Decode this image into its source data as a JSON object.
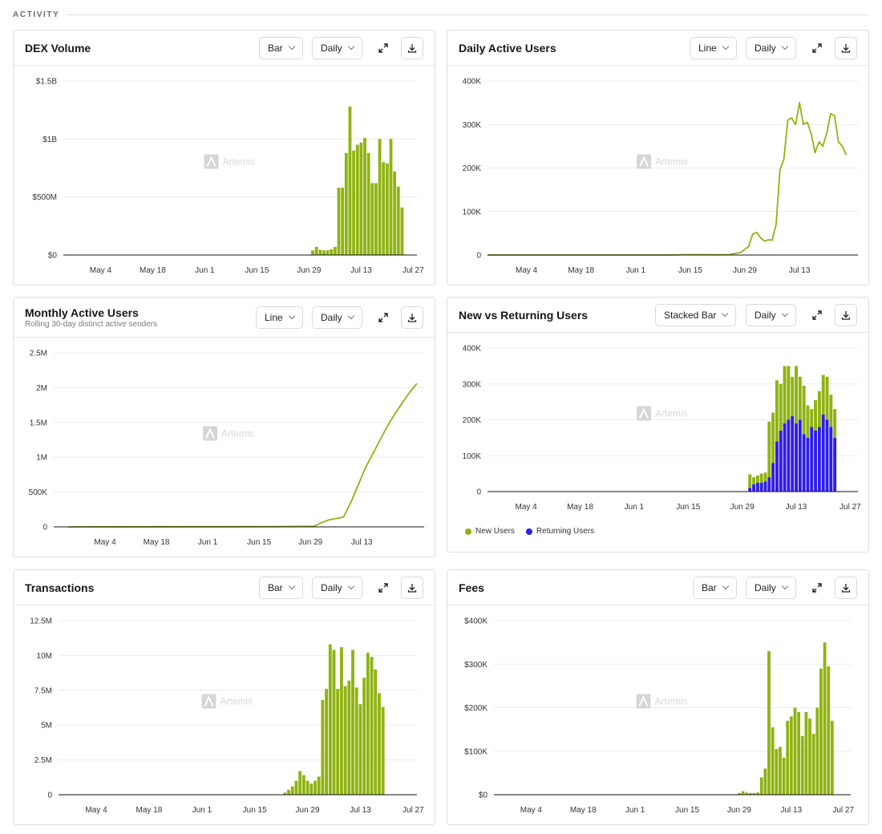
{
  "section": {
    "title": "ACTIVITY"
  },
  "colors": {
    "green": "#8fb312",
    "blue": "#2f1ee8",
    "grid": "#ececec",
    "axis": "#111111",
    "watermark": "#d6d6d6"
  },
  "watermark": "Artemis",
  "xticks": [
    "May 4",
    "May 18",
    "Jun 1",
    "Jun 15",
    "Jun 29",
    "Jul 13",
    "Jul 27"
  ],
  "cards": {
    "dex": {
      "title": "DEX Volume",
      "chart_type_label": "Bar",
      "interval_label": "Daily",
      "expand_icon": "expand-icon",
      "download_icon": "download-icon"
    },
    "dau": {
      "title": "Daily Active Users",
      "chart_type_label": "Line",
      "interval_label": "Daily"
    },
    "mau": {
      "title": "Monthly Active Users",
      "subtitle": "Rolling 30-day distinct active senders",
      "chart_type_label": "Line",
      "interval_label": "Daily"
    },
    "nvr": {
      "title": "New vs Returning Users",
      "chart_type_label": "Stacked Bar",
      "interval_label": "Daily",
      "legend": [
        "New Users",
        "Returning Users"
      ]
    },
    "tx": {
      "title": "Transactions",
      "chart_type_label": "Bar",
      "interval_label": "Daily"
    },
    "fees": {
      "title": "Fees",
      "chart_type_label": "Bar",
      "interval_label": "Daily"
    }
  },
  "chart_data": [
    {
      "id": "dex",
      "type": "bar",
      "title": "DEX Volume",
      "y_ticks": [
        "$0",
        "$500M",
        "$1B",
        "$1.5B"
      ],
      "ylim": [
        0,
        1500000000
      ],
      "x_ticks": [
        "May 4",
        "May 18",
        "Jun 1",
        "Jun 15",
        "Jun 29",
        "Jul 13",
        "Jul 27"
      ],
      "start": "Apr 24",
      "end": "Jul 28",
      "series": [
        {
          "color_key": "green",
          "values_from": "Jun 30",
          "values": [
            40000000.0,
            70000000.0,
            45000000.0,
            40000000.0,
            40000000.0,
            50000000.0,
            70000000.0,
            580000000.0,
            580000000.0,
            880000000.0,
            1280000000.0,
            900000000.0,
            950000000.0,
            970000000.0,
            1010000000.0,
            880000000.0,
            620000000.0,
            620000000.0,
            1000000000.0,
            800000000.0,
            790000000.0,
            1000000000.0,
            720000000.0,
            590000000.0,
            410000000.0
          ]
        }
      ]
    },
    {
      "id": "dau",
      "type": "line",
      "title": "Daily Active Users",
      "y_ticks": [
        "0",
        "100K",
        "200K",
        "300K",
        "400K"
      ],
      "ylim": [
        0,
        400000
      ],
      "x_ticks": [
        "May 4",
        "May 18",
        "Jun 1",
        "Jun 15",
        "Jun 29",
        "Jul 13"
      ],
      "start": "Apr 24",
      "end": "Jul 28",
      "series": [
        {
          "color_key": "green",
          "points": [
            [
              "Apr 24",
              0
            ],
            [
              "Jun 10",
              0
            ],
            [
              "Jun 14",
              1000
            ],
            [
              "Jun 21",
              500
            ],
            [
              "Jun 25",
              1000
            ],
            [
              "Jun 28",
              6000
            ],
            [
              "Jun 30",
              20000
            ],
            [
              "Jul 1",
              48000
            ],
            [
              "Jul 2",
              52000
            ],
            [
              "Jul 3",
              40000
            ],
            [
              "Jul 4",
              32000
            ],
            [
              "Jul 5",
              35000
            ],
            [
              "Jul 6",
              34000
            ],
            [
              "Jul 7",
              70000
            ],
            [
              "Jul 8",
              195000
            ],
            [
              "Jul 9",
              220000
            ],
            [
              "Jul 10",
              310000
            ],
            [
              "Jul 11",
              315000
            ],
            [
              "Jul 12",
              300000
            ],
            [
              "Jul 13",
              350000
            ],
            [
              "Jul 14",
              300000
            ],
            [
              "Jul 15",
              305000
            ],
            [
              "Jul 16",
              280000
            ],
            [
              "Jul 17",
              235000
            ],
            [
              "Jul 18",
              260000
            ],
            [
              "Jul 19",
              250000
            ],
            [
              "Jul 20",
              280000
            ],
            [
              "Jul 21",
              325000
            ],
            [
              "Jul 22",
              320000
            ],
            [
              "Jul 23",
              260000
            ],
            [
              "Jul 24",
              250000
            ],
            [
              "Jul 25",
              230000
            ]
          ]
        }
      ]
    },
    {
      "id": "mau",
      "type": "line",
      "title": "Monthly Active Users",
      "y_ticks": [
        "0",
        "500K",
        "1M",
        "1.5M",
        "2M",
        "2.5M"
      ],
      "ylim": [
        0,
        2500000
      ],
      "x_ticks": [
        "May 4",
        "May 18",
        "Jun 1",
        "Jun 15",
        "Jun 29",
        "Jul 13"
      ],
      "start": "Apr 20",
      "end": "Jul 30",
      "series": [
        {
          "color_key": "green",
          "points": [
            [
              "Apr 24",
              0
            ],
            [
              "Jun 20",
              3000
            ],
            [
              "Jun 30",
              10000
            ],
            [
              "Jul 2",
              60000
            ],
            [
              "Jul 4",
              100000
            ],
            [
              "Jul 6",
              120000
            ],
            [
              "Jul 8",
              140000
            ],
            [
              "Jul 10",
              350000
            ],
            [
              "Jul 12",
              600000
            ],
            [
              "Jul 14",
              850000
            ],
            [
              "Jul 16",
              1050000
            ],
            [
              "Jul 18",
              1250000
            ],
            [
              "Jul 20",
              1450000
            ],
            [
              "Jul 22",
              1620000
            ],
            [
              "Jul 24",
              1780000
            ],
            [
              "Jul 26",
              1930000
            ],
            [
              "Jul 28",
              2060000
            ]
          ]
        }
      ]
    },
    {
      "id": "nvr",
      "type": "bar",
      "stacked": true,
      "title": "New vs Returning Users",
      "y_ticks": [
        "0",
        "100K",
        "200K",
        "300K",
        "400K"
      ],
      "ylim": [
        0,
        400000
      ],
      "x_ticks": [
        "May 4",
        "May 18",
        "Jun 1",
        "Jun 15",
        "Jun 29",
        "Jul 13",
        "Jul 27"
      ],
      "start": "Apr 24",
      "end": "Jul 29",
      "series": [
        {
          "name": "Returning Users",
          "color_key": "blue",
          "values_from": "Jul 1",
          "values": [
            10000,
            20000,
            25000,
            25000,
            28000,
            40000,
            80000,
            140000,
            170000,
            190000,
            200000,
            210000,
            190000,
            200000,
            160000,
            150000,
            180000,
            170000,
            180000,
            215000,
            200000,
            180000,
            150000
          ]
        },
        {
          "name": "New Users",
          "color_key": "green",
          "values_from": "Jul 1",
          "values": [
            38000,
            20000,
            20000,
            25000,
            25000,
            155000,
            140000,
            170000,
            130000,
            160000,
            150000,
            110000,
            160000,
            120000,
            135000,
            90000,
            50000,
            85000,
            100000,
            110000,
            120000,
            90000,
            80000
          ]
        }
      ]
    },
    {
      "id": "tx",
      "type": "bar",
      "title": "Transactions",
      "y_ticks": [
        "0",
        "2.5M",
        "5M",
        "7.5M",
        "10M",
        "12.5M"
      ],
      "ylim": [
        0,
        12500000
      ],
      "x_ticks": [
        "May 4",
        "May 18",
        "Jun 1",
        "Jun 15",
        "Jun 29",
        "Jul 13",
        "Jul 27"
      ],
      "start": "Apr 24",
      "end": "Jul 28",
      "series": [
        {
          "color_key": "green",
          "values_from": "Jun 23",
          "values": [
            150000,
            350000,
            600000,
            1000000,
            1700000,
            1400000,
            1000000,
            800000,
            1000000,
            1300000,
            6800000,
            7600000,
            10800000,
            10400000,
            7600000,
            10600000,
            7800000,
            8200000,
            10400000,
            7700000,
            6500000,
            8400000,
            10200000,
            9900000,
            9000000,
            7300000,
            6300000
          ]
        }
      ]
    },
    {
      "id": "fees",
      "type": "bar",
      "title": "Fees",
      "y_ticks": [
        "$0",
        "$100K",
        "$200K",
        "$300K",
        "$400K"
      ],
      "ylim": [
        0,
        400000
      ],
      "x_ticks": [
        "May 4",
        "May 18",
        "Jun 1",
        "Jun 15",
        "Jun 29",
        "Jul 13",
        "Jul 27"
      ],
      "start": "Apr 24",
      "end": "Jul 29",
      "series": [
        {
          "color_key": "green",
          "values_from": "Jun 29",
          "values": [
            4000,
            8000,
            5000,
            4000,
            4000,
            5000,
            40000,
            60000,
            330000,
            155000,
            105000,
            110000,
            85000,
            170000,
            180000,
            200000,
            190000,
            135000,
            190000,
            175000,
            140000,
            200000,
            290000,
            350000,
            295000,
            170000
          ]
        }
      ]
    }
  ]
}
